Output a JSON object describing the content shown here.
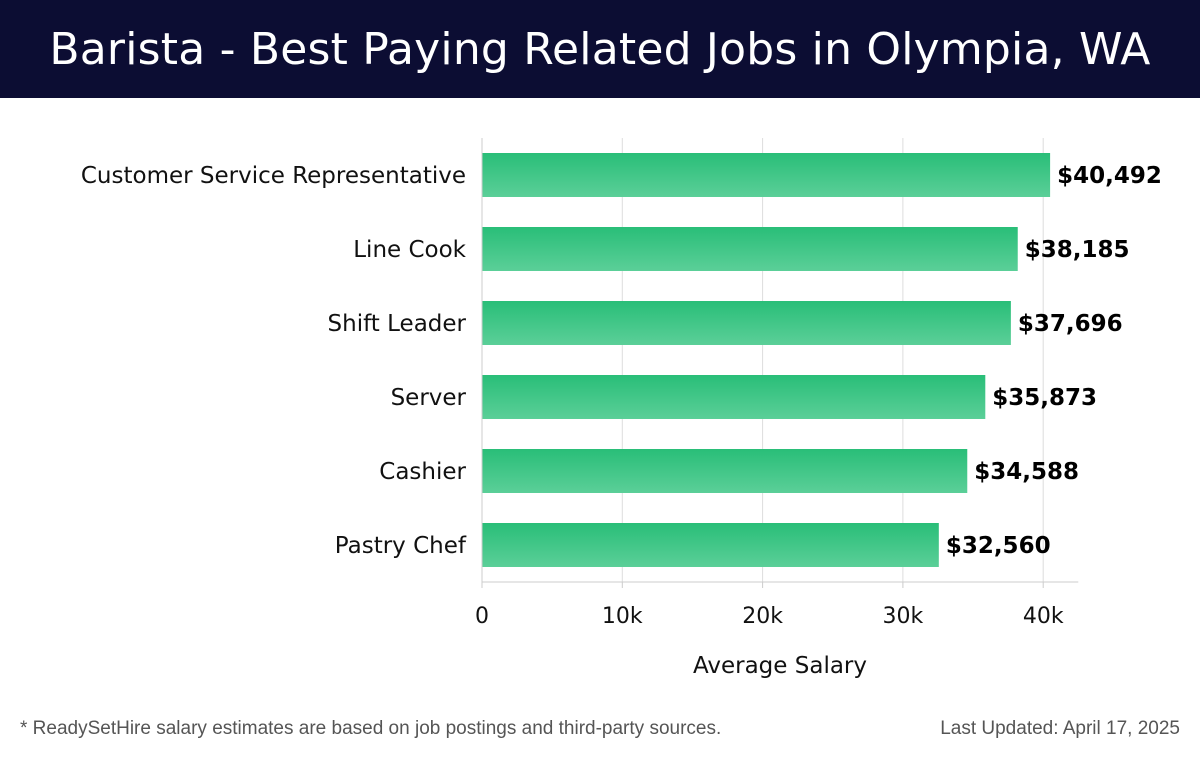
{
  "header": {
    "title": "Barista - Best Paying Related Jobs in Olympia, WA"
  },
  "footer": {
    "note": "* ReadySetHire salary estimates are based on job postings and third-party sources.",
    "last_updated": "Last Updated: April 17, 2025"
  },
  "colors": {
    "header_bg": "#0c0d33",
    "bar_top": "#29be78",
    "bar_bottom": "#5bcf98",
    "grid": "#dddddd"
  },
  "chart_data": {
    "type": "bar",
    "orientation": "horizontal",
    "categories": [
      "Customer Service Representative",
      "Line Cook",
      "Shift Leader",
      "Server",
      "Cashier",
      "Pastry Chef"
    ],
    "values": [
      40492,
      38185,
      37696,
      35873,
      34588,
      32560
    ],
    "value_labels": [
      "$40,492",
      "$38,185",
      "$37,696",
      "$35,873",
      "$34,588",
      "$32,560"
    ],
    "xlabel": "Average Salary",
    "ylabel": "",
    "xlim": [
      0,
      42500
    ],
    "x_ticks": [
      0,
      10000,
      20000,
      30000,
      40000
    ],
    "x_tick_labels": [
      "0",
      "10k",
      "20k",
      "30k",
      "40k"
    ],
    "grid": true,
    "legend": "none"
  }
}
